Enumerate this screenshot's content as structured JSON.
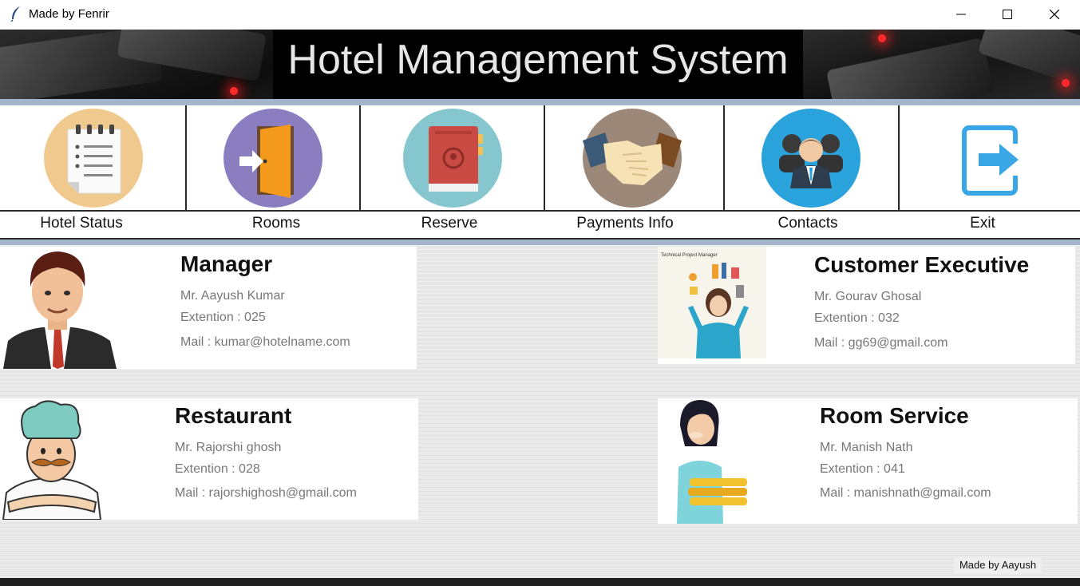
{
  "window": {
    "title": "Made by Fenrir"
  },
  "banner": {
    "title": "Hotel Management System"
  },
  "nav": {
    "items": [
      {
        "label": "Hotel Status",
        "icon": "notepad-icon",
        "color": "#f0c98f"
      },
      {
        "label": "Rooms",
        "icon": "door-icon",
        "color": "#8a7ec1"
      },
      {
        "label": "Reserve",
        "icon": "book-icon",
        "color": "#86c7cf"
      },
      {
        "label": "Payments Info",
        "icon": "handshake-icon",
        "color": "#9c8878"
      },
      {
        "label": "Contacts",
        "icon": "people-icon",
        "color": "#2aa3dd"
      },
      {
        "label": "Exit",
        "icon": "exit-icon",
        "color": "#2aa3dd"
      }
    ]
  },
  "contacts": {
    "manager": {
      "role": "Manager",
      "name": "Mr. Aayush Kumar",
      "ext": "Extention : 025",
      "mail": "Mail : kumar@hotelname.com"
    },
    "customer_exec": {
      "role": "Customer Executive",
      "name": "Mr. Gourav Ghosal",
      "ext": "Extention : 032",
      "mail": "Mail : gg69@gmail.com",
      "image_caption": "Technical Project Manager"
    },
    "restaurant": {
      "role": "Restaurant",
      "name": "Mr. Rajorshi ghosh",
      "ext": "Extention : 028",
      "mail": "Mail : rajorshighosh@gmail.com"
    },
    "room_service": {
      "role": "Room Service",
      "name": "Mr. Manish Nath",
      "ext": "Extention : 041",
      "mail": "Mail : manishnath@gmail.com"
    }
  },
  "footer": {
    "credit": "Made by Aayush"
  }
}
